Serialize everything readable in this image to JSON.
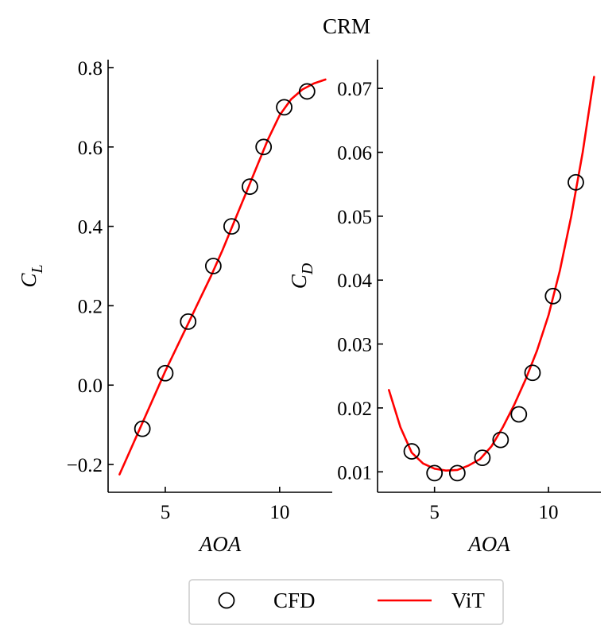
{
  "figure": {
    "title": "CRM",
    "legend": {
      "placement": "bottom-center",
      "entries": [
        {
          "label": "CFD",
          "marker": "open-circle",
          "color": "#000000"
        },
        {
          "label": "ViT",
          "marker": "line",
          "color": "#ff0000"
        }
      ]
    }
  },
  "chart_data": [
    {
      "type": "line",
      "panel": "left",
      "xlabel": "AOA",
      "ylabel_main": "C",
      "ylabel_sub": "L",
      "xlim": [
        2.5,
        12.3
      ],
      "ylim": [
        -0.27,
        0.82
      ],
      "xticks": [
        5,
        10
      ],
      "xtick_labels": [
        "5",
        "10"
      ],
      "yticks": [
        -0.2,
        0.0,
        0.2,
        0.4,
        0.6,
        0.8
      ],
      "ytick_labels": [
        "−0.2",
        "0.0",
        "0.2",
        "0.4",
        "0.6",
        "0.8"
      ],
      "series": [
        {
          "name": "CFD",
          "style": "markers",
          "x": [
            4.0,
            5.0,
            6.0,
            7.1,
            7.9,
            8.7,
            9.3,
            10.2,
            11.2
          ],
          "y": [
            -0.11,
            0.03,
            0.16,
            0.3,
            0.4,
            0.5,
            0.6,
            0.7,
            0.74
          ]
        },
        {
          "name": "ViT",
          "style": "line",
          "x": [
            3.0,
            3.5,
            4.0,
            4.5,
            5.0,
            5.5,
            6.0,
            6.5,
            7.0,
            7.5,
            8.0,
            8.5,
            9.0,
            9.5,
            10.0,
            10.5,
            11.0,
            11.5,
            12.0
          ],
          "y": [
            -0.225,
            -0.16,
            -0.095,
            -0.03,
            0.035,
            0.095,
            0.155,
            0.215,
            0.275,
            0.34,
            0.41,
            0.48,
            0.55,
            0.62,
            0.68,
            0.72,
            0.745,
            0.76,
            0.77
          ]
        }
      ]
    },
    {
      "type": "line",
      "panel": "right",
      "xlabel": "AOA",
      "ylabel_main": "C",
      "ylabel_sub": "D",
      "xlim": [
        2.5,
        12.3
      ],
      "ylim": [
        0.0068,
        0.0745
      ],
      "xticks": [
        5,
        10
      ],
      "xtick_labels": [
        "5",
        "10"
      ],
      "yticks": [
        0.01,
        0.02,
        0.03,
        0.04,
        0.05,
        0.06,
        0.07
      ],
      "ytick_labels": [
        "0.01",
        "0.02",
        "0.03",
        "0.04",
        "0.05",
        "0.06",
        "0.07"
      ],
      "series": [
        {
          "name": "CFD",
          "style": "markers",
          "x": [
            4.0,
            5.0,
            6.0,
            7.1,
            7.9,
            8.7,
            9.3,
            10.2,
            11.2
          ],
          "y": [
            0.0132,
            0.0098,
            0.0098,
            0.0122,
            0.015,
            0.019,
            0.0255,
            0.0375,
            0.0553
          ]
        },
        {
          "name": "ViT",
          "style": "line",
          "x": [
            3.0,
            3.5,
            4.0,
            4.5,
            5.0,
            5.5,
            6.0,
            6.5,
            7.0,
            7.5,
            8.0,
            8.5,
            9.0,
            9.5,
            10.0,
            10.5,
            11.0,
            11.5,
            12.0
          ],
          "y": [
            0.0228,
            0.017,
            0.013,
            0.0113,
            0.0105,
            0.0102,
            0.0103,
            0.011,
            0.012,
            0.014,
            0.017,
            0.0205,
            0.0245,
            0.029,
            0.0345,
            0.0415,
            0.05,
            0.06,
            0.0718
          ]
        }
      ]
    }
  ]
}
